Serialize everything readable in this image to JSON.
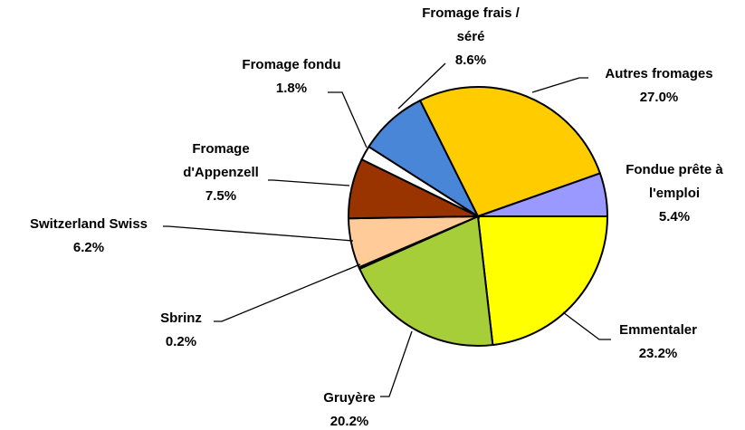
{
  "chart_data": {
    "type": "pie",
    "categories": [
      "Emmentaler",
      "Gruyère",
      "Sbrinz",
      "Switzerland Swiss",
      "Fromage\nd'Appenzell",
      "Fromage fondu",
      "Fromage frais /\nséré",
      "Autres fromages",
      "Fondue prête à\nl'emploi"
    ],
    "values": [
      23.2,
      20.2,
      0.2,
      6.2,
      7.5,
      1.8,
      8.6,
      27.0,
      5.4
    ],
    "value_labels": [
      "23.2%",
      "20.2%",
      "0.2%",
      "6.2%",
      "7.5%",
      "1.8%",
      "8.6%",
      "27.0%",
      "5.4%"
    ],
    "colors": [
      "#ffff00",
      "#a6ce39",
      "#336600",
      "#ffcc99",
      "#993300",
      "#ffffff",
      "#4a86d8",
      "#ffcc00",
      "#9999ff"
    ]
  }
}
